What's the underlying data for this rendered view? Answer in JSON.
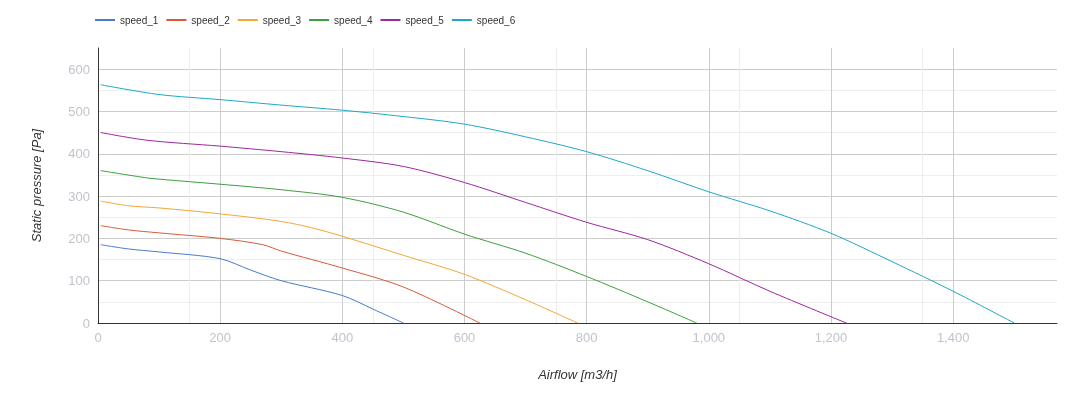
{
  "chart_data": {
    "type": "line",
    "xlabel": "Airflow [m3/h]",
    "ylabel": "Static pressure [Pa]",
    "xlim": [
      0,
      1570
    ],
    "xticks": [
      0,
      200,
      400,
      600,
      800,
      {
        "value": 1000,
        "label": "1,000"
      },
      {
        "value": 1200,
        "label": "1,200"
      },
      {
        "value": 1400,
        "label": "1,400"
      }
    ],
    "ylim": [
      0,
      650
    ],
    "yticks": [
      0,
      100,
      200,
      300,
      400,
      500,
      600
    ],
    "grid": true,
    "legend": "top left",
    "marker": "none",
    "line_style": "solid",
    "series": [
      {
        "name": "speed_1",
        "color": "#4a7bc8",
        "x": [
          5,
          50,
          100,
          200,
          250,
          300,
          400,
          450,
          500
        ],
        "values": [
          185,
          175,
          168,
          152,
          125,
          100,
          65,
          33,
          0
        ]
      },
      {
        "name": "speed_2",
        "color": "#d65a3a",
        "x": [
          5,
          50,
          100,
          200,
          270,
          300,
          400,
          500,
          625
        ],
        "values": [
          230,
          220,
          213,
          200,
          185,
          170,
          130,
          85,
          0
        ]
      },
      {
        "name": "speed_3",
        "color": "#f2a735",
        "x": [
          5,
          50,
          100,
          200,
          300,
          350,
          400,
          500,
          600,
          700,
          785
        ],
        "values": [
          288,
          277,
          272,
          258,
          240,
          225,
          205,
          160,
          115,
          55,
          0
        ]
      },
      {
        "name": "speed_4",
        "color": "#3e9f3e",
        "x": [
          5,
          80,
          100,
          200,
          300,
          400,
          500,
          600,
          700,
          800,
          900,
          980
        ],
        "values": [
          360,
          343,
          340,
          328,
          315,
          297,
          262,
          210,
          165,
          110,
          50,
          0
        ]
      },
      {
        "name": "speed_5",
        "color": "#9c27a0",
        "x": [
          5,
          80,
          200,
          300,
          400,
          500,
          600,
          700,
          800,
          900,
          1000,
          1100,
          1225
        ],
        "values": [
          450,
          432,
          418,
          405,
          390,
          370,
          332,
          285,
          238,
          197,
          140,
          75,
          0
        ]
      },
      {
        "name": "speed_6",
        "color": "#1fa7c8",
        "x": [
          5,
          100,
          200,
          300,
          400,
          500,
          600,
          700,
          800,
          900,
          1000,
          1100,
          1200,
          1300,
          1400,
          1500
        ],
        "values": [
          563,
          540,
          528,
          515,
          503,
          488,
          470,
          440,
          405,
          360,
          310,
          265,
          212,
          145,
          75,
          0
        ]
      }
    ]
  }
}
